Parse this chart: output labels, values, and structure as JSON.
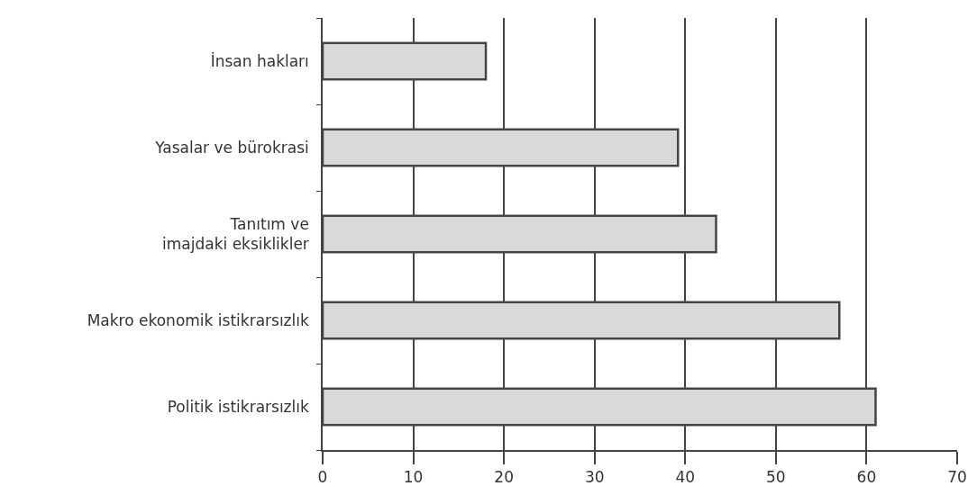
{
  "chart_data": {
    "type": "bar",
    "orientation": "horizontal",
    "categories": [
      "İnsan hakları",
      "Yasalar ve bürokrasi",
      "Tanıtım ve\nimajdaki eksiklikler",
      "Makro ekonomik istikrarsızlık",
      "Politik istikrarsızlık"
    ],
    "values": [
      18,
      39.2,
      43.4,
      57,
      61
    ],
    "color": "#d9d9d9",
    "xlim": [
      0,
      70
    ],
    "xticks": [
      0,
      10,
      20,
      30,
      40,
      50,
      60,
      70
    ],
    "grid": "x"
  }
}
